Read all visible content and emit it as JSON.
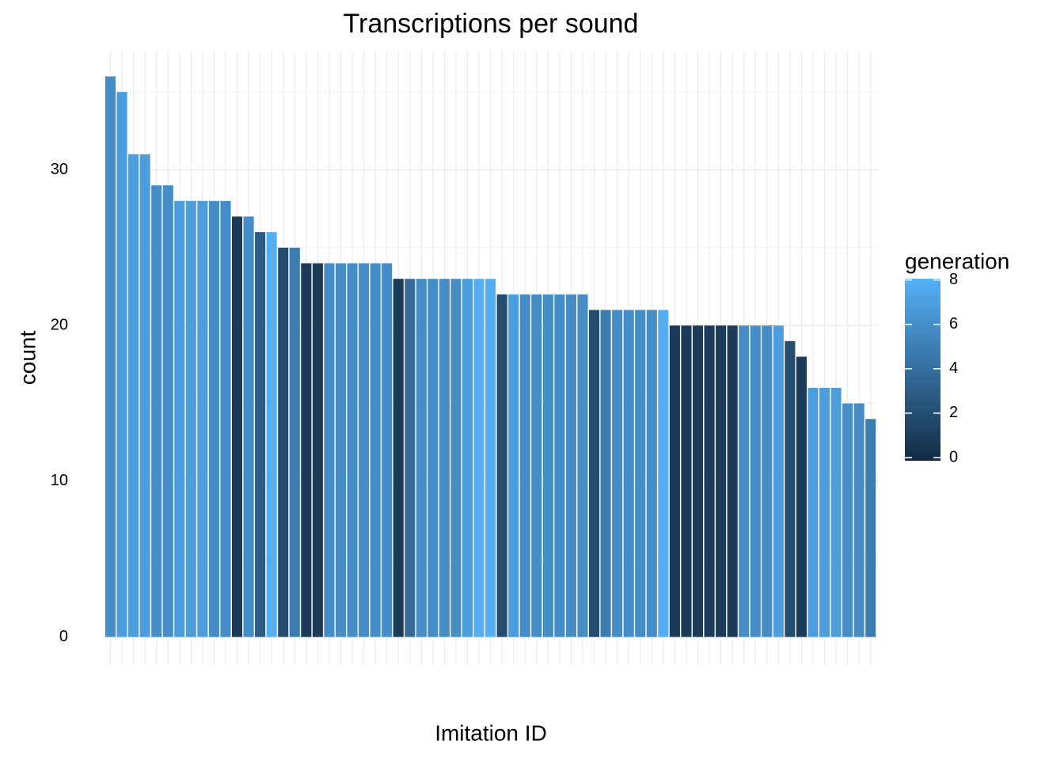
{
  "chart_data": {
    "type": "bar",
    "title": "Transcriptions per sound",
    "x_label": "Imitation ID",
    "y_label": "count",
    "categories": [
      null,
      null,
      null,
      null,
      null,
      null,
      null,
      null,
      null,
      null,
      null,
      null,
      null,
      null,
      null,
      null,
      null,
      null,
      null,
      null,
      null,
      null,
      null,
      null,
      null,
      null,
      null,
      null,
      null,
      null,
      null,
      null,
      null,
      null,
      null,
      null,
      null,
      null,
      null,
      null,
      null,
      null,
      null,
      null,
      null,
      null,
      null,
      null,
      null,
      null,
      null,
      null,
      null,
      null,
      null,
      null,
      null,
      null,
      null,
      null,
      null,
      null,
      null,
      null,
      null,
      null,
      null
    ],
    "values": [
      36,
      35,
      31,
      31,
      29,
      29,
      28,
      28,
      28,
      28,
      28,
      27,
      27,
      26,
      26,
      25,
      25,
      24,
      24,
      24,
      24,
      24,
      24,
      24,
      24,
      23,
      23,
      23,
      23,
      23,
      23,
      23,
      23,
      23,
      22,
      22,
      22,
      22,
      22,
      22,
      22,
      22,
      21,
      21,
      21,
      21,
      21,
      21,
      21,
      20,
      20,
      20,
      20,
      20,
      20,
      20,
      20,
      20,
      20,
      19,
      18,
      16,
      16,
      16,
      15,
      15,
      14
    ],
    "fill_name": "generation",
    "fill_values": [
      6,
      7,
      7,
      7,
      6,
      6,
      7,
      7,
      7,
      6,
      6,
      1,
      6,
      3,
      8,
      2,
      5,
      1,
      1,
      6,
      6,
      6,
      6,
      6,
      6,
      1,
      4,
      6,
      6,
      6,
      6,
      7,
      8,
      8,
      2,
      7,
      6,
      6,
      6,
      6,
      6,
      6,
      2,
      5,
      6,
      6,
      6,
      6,
      8,
      1,
      1,
      1,
      1,
      1,
      1,
      6,
      6,
      6,
      7,
      2,
      1,
      7,
      7,
      7,
      6,
      6,
      5
    ],
    "fill_colors": [
      "#132b43",
      "#56b1f7"
    ],
    "fill_lim": [
      0,
      8.2
    ],
    "fill_ticks": [
      0,
      2,
      4,
      6,
      8
    ],
    "ylim": [
      -1.8,
      37.6
    ],
    "yticks": [
      0,
      10,
      20,
      30
    ],
    "grid": true
  }
}
